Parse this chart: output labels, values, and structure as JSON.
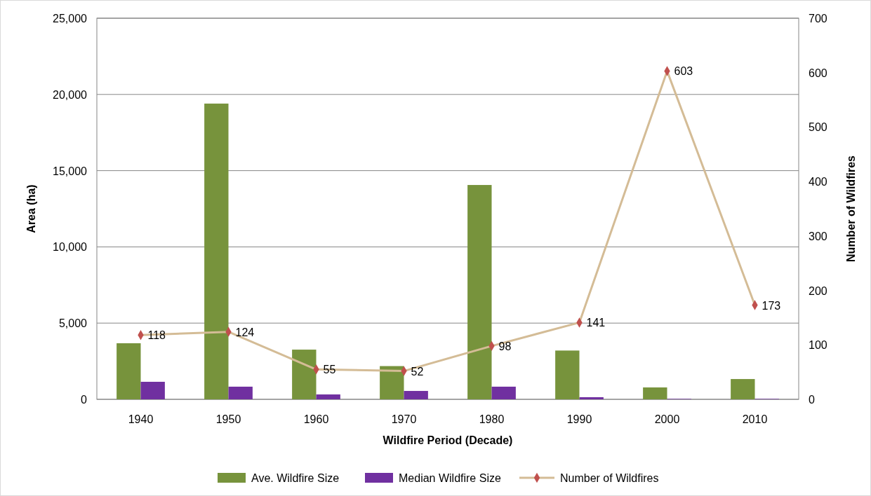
{
  "chart_data": {
    "type": "bar",
    "xlabel": "Wildfire Period (Decade)",
    "ylabel": "Area (ha)",
    "y2label": "Number of Wildfires",
    "categories": [
      "1940",
      "1950",
      "1960",
      "1970",
      "1980",
      "1990",
      "2000",
      "2010"
    ],
    "series": [
      {
        "name": "Ave. Wildfire Size",
        "color": "#77933c",
        "values": [
          3680,
          19400,
          3260,
          2180,
          14060,
          3200,
          780,
          1330
        ]
      },
      {
        "name": "Median Wildfire Size",
        "color": "#7030a0",
        "values": [
          1150,
          830,
          320,
          550,
          830,
          140,
          30,
          30
        ]
      },
      {
        "name": "Number of Wildfires",
        "type": "line",
        "axis": "y2",
        "color": "#d4bc96",
        "marker": "diamond",
        "values": [
          118,
          124,
          55,
          52,
          98,
          141,
          603,
          173
        ],
        "value_labels": [
          "118",
          "124",
          "55",
          "52",
          "98",
          "141",
          "603",
          "173"
        ]
      }
    ],
    "ylim": [
      0,
      25000
    ],
    "yticks": [
      {
        "value": 0,
        "label": "0"
      },
      {
        "value": 5000,
        "label": "5,000"
      },
      {
        "value": 10000,
        "label": "10,000"
      },
      {
        "value": 15000,
        "label": "15,000"
      },
      {
        "value": 20000,
        "label": "20,000"
      },
      {
        "value": 25000,
        "label": "25,000"
      }
    ],
    "y2lim": [
      0,
      700
    ],
    "y2ticks": [
      0,
      100,
      200,
      300,
      400,
      500,
      600,
      700
    ],
    "grid": "y",
    "legend": "bottom"
  }
}
